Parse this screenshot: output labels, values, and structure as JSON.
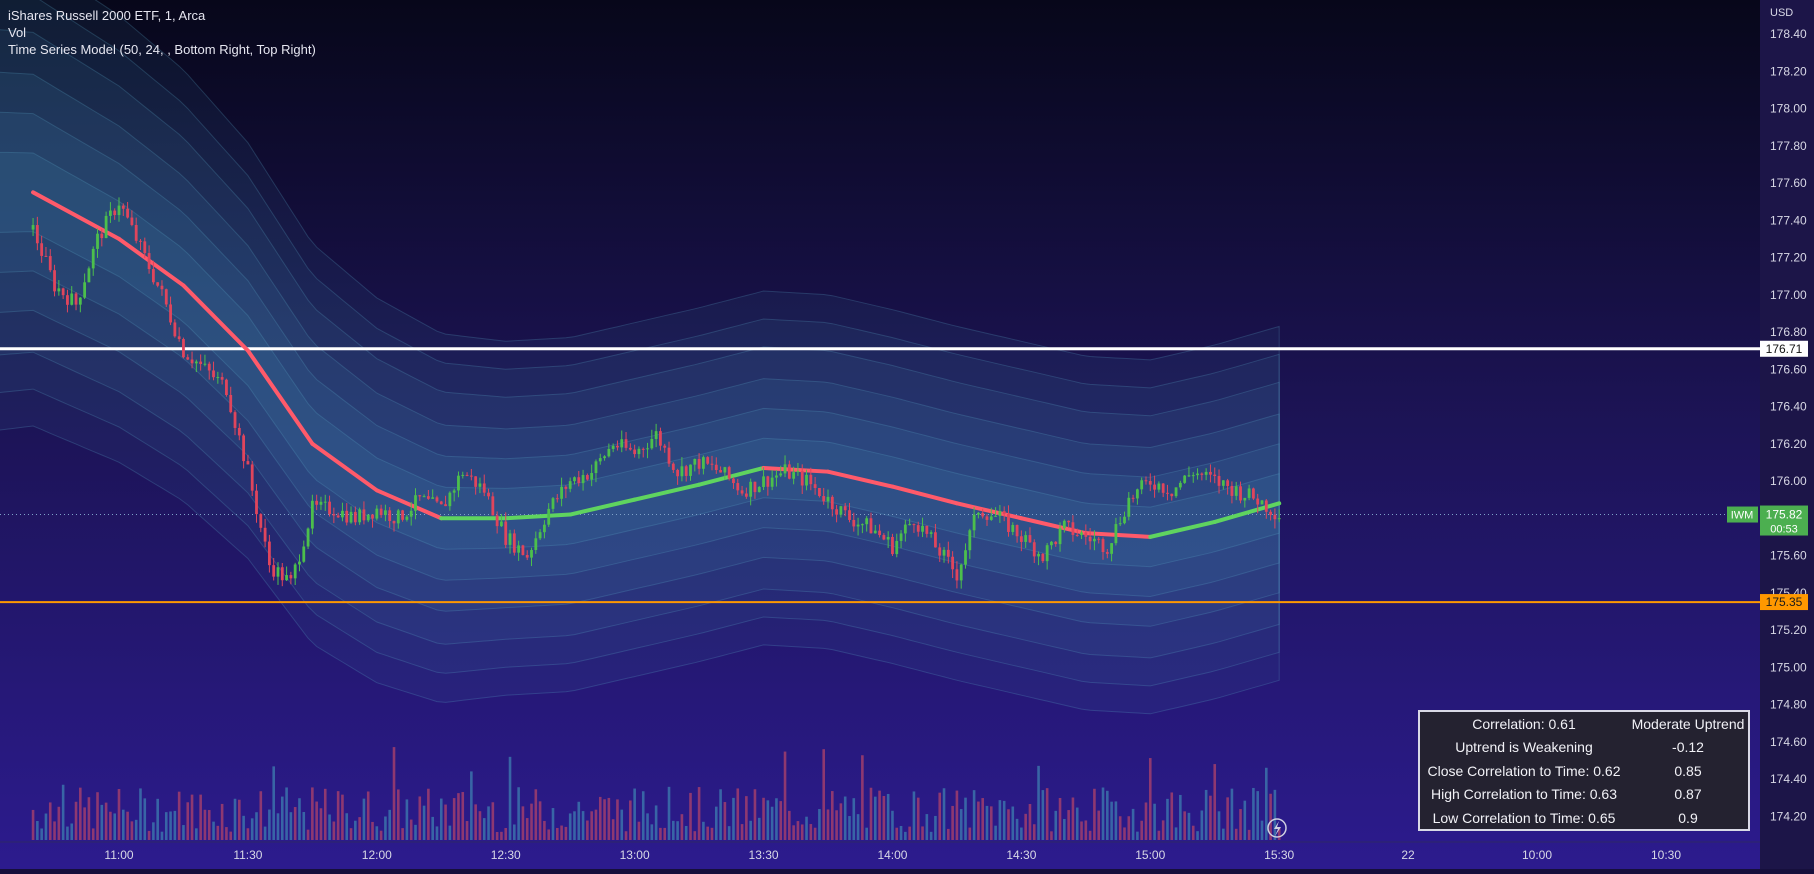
{
  "header": {
    "title": "iShares Russell 2000 ETF, 1, Arca",
    "volume_label": "Vol",
    "indicator_label": "Time Series Model (50, 24, , Bottom Right, Top Right)",
    "currency": "USD"
  },
  "colors": {
    "background_top": "#08081a",
    "background_bottom": "#2a1a8a",
    "up_candle": "#4cbf4c",
    "down_candle": "#e0455c",
    "model_down": "#ff5a6a",
    "model_up": "#5fd45f",
    "band": "#3f7fa8",
    "resistance": "#ffffff",
    "support": "#ff9800",
    "price_tag": "#4caf50"
  },
  "chart_data": {
    "type": "candlestick",
    "title": "iShares Russell 2000 ETF, 1, Arca",
    "ylabel": "USD",
    "ylim": [
      174.08,
      178.5
    ],
    "y_ticks": [
      "178.40",
      "178.20",
      "178.00",
      "177.80",
      "177.60",
      "177.40",
      "177.20",
      "177.00",
      "176.80",
      "176.60",
      "176.40",
      "176.20",
      "176.00",
      "175.60",
      "175.40",
      "175.20",
      "175.00",
      "174.80",
      "174.60",
      "174.40",
      "174.20"
    ],
    "x_ticks": [
      "11:00",
      "11:30",
      "12:00",
      "12:30",
      "13:00",
      "13:30",
      "14:00",
      "14:30",
      "15:00",
      "15:30",
      "22",
      "10:00",
      "10:30"
    ],
    "grid": false,
    "horizontal_lines": [
      {
        "name": "resistance",
        "value": 176.71,
        "label": "176.71"
      },
      {
        "name": "support",
        "value": 175.35,
        "label": "175.35"
      }
    ],
    "last_price": {
      "symbol": "IWM",
      "value": 175.82,
      "label": "175.82",
      "countdown": "00:53"
    },
    "price_path": [
      {
        "t": "10:40",
        "p": 177.35
      },
      {
        "t": "10:45",
        "p": 177.05
      },
      {
        "t": "10:50",
        "p": 176.95
      },
      {
        "t": "10:55",
        "p": 177.3
      },
      {
        "t": "11:00",
        "p": 177.5
      },
      {
        "t": "11:05",
        "p": 177.25
      },
      {
        "t": "11:10",
        "p": 177.0
      },
      {
        "t": "11:15",
        "p": 176.7
      },
      {
        "t": "11:20",
        "p": 176.6
      },
      {
        "t": "11:25",
        "p": 176.5
      },
      {
        "t": "11:30",
        "p": 176.05
      },
      {
        "t": "11:35",
        "p": 175.55
      },
      {
        "t": "11:40",
        "p": 175.45
      },
      {
        "t": "11:45",
        "p": 175.85
      },
      {
        "t": "11:50",
        "p": 175.85
      },
      {
        "t": "11:55",
        "p": 175.8
      },
      {
        "t": "12:00",
        "p": 175.85
      },
      {
        "t": "12:05",
        "p": 175.8
      },
      {
        "t": "12:10",
        "p": 175.9
      },
      {
        "t": "12:15",
        "p": 175.85
      },
      {
        "t": "12:20",
        "p": 176.05
      },
      {
        "t": "12:25",
        "p": 175.95
      },
      {
        "t": "12:30",
        "p": 175.7
      },
      {
        "t": "12:35",
        "p": 175.6
      },
      {
        "t": "12:40",
        "p": 175.85
      },
      {
        "t": "12:45",
        "p": 176.0
      },
      {
        "t": "12:50",
        "p": 176.05
      },
      {
        "t": "12:55",
        "p": 176.2
      },
      {
        "t": "13:00",
        "p": 176.15
      },
      {
        "t": "13:05",
        "p": 176.25
      },
      {
        "t": "13:10",
        "p": 176.05
      },
      {
        "t": "13:15",
        "p": 176.1
      },
      {
        "t": "13:20",
        "p": 176.05
      },
      {
        "t": "13:25",
        "p": 175.95
      },
      {
        "t": "13:30",
        "p": 176.0
      },
      {
        "t": "13:35",
        "p": 176.05
      },
      {
        "t": "13:40",
        "p": 176.0
      },
      {
        "t": "13:45",
        "p": 175.9
      },
      {
        "t": "13:50",
        "p": 175.8
      },
      {
        "t": "13:55",
        "p": 175.75
      },
      {
        "t": "14:00",
        "p": 175.65
      },
      {
        "t": "14:05",
        "p": 175.8
      },
      {
        "t": "14:10",
        "p": 175.65
      },
      {
        "t": "14:15",
        "p": 175.5
      },
      {
        "t": "14:20",
        "p": 175.85
      },
      {
        "t": "14:25",
        "p": 175.8
      },
      {
        "t": "14:30",
        "p": 175.7
      },
      {
        "t": "14:35",
        "p": 175.6
      },
      {
        "t": "14:40",
        "p": 175.75
      },
      {
        "t": "14:45",
        "p": 175.7
      },
      {
        "t": "14:50",
        "p": 175.65
      },
      {
        "t": "14:55",
        "p": 175.9
      },
      {
        "t": "15:00",
        "p": 176.0
      },
      {
        "t": "15:05",
        "p": 175.95
      },
      {
        "t": "15:10",
        "p": 176.05
      },
      {
        "t": "15:15",
        "p": 176.0
      },
      {
        "t": "15:20",
        "p": 175.95
      },
      {
        "t": "15:25",
        "p": 175.9
      },
      {
        "t": "15:30",
        "p": 175.82
      }
    ],
    "model_line": [
      {
        "t": "10:40",
        "p": 177.55
      },
      {
        "t": "11:00",
        "p": 177.3
      },
      {
        "t": "11:15",
        "p": 177.05
      },
      {
        "t": "11:30",
        "p": 176.7
      },
      {
        "t": "11:45",
        "p": 176.2
      },
      {
        "t": "12:00",
        "p": 175.95
      },
      {
        "t": "12:15",
        "p": 175.8
      },
      {
        "t": "12:30",
        "p": 175.8
      },
      {
        "t": "12:45",
        "p": 175.82
      },
      {
        "t": "13:00",
        "p": 175.9
      },
      {
        "t": "13:15",
        "p": 175.98
      },
      {
        "t": "13:30",
        "p": 176.07
      },
      {
        "t": "13:45",
        "p": 176.05
      },
      {
        "t": "14:00",
        "p": 175.97
      },
      {
        "t": "14:15",
        "p": 175.88
      },
      {
        "t": "14:30",
        "p": 175.8
      },
      {
        "t": "14:45",
        "p": 175.72
      },
      {
        "t": "15:00",
        "p": 175.7
      },
      {
        "t": "15:15",
        "p": 175.78
      },
      {
        "t": "15:30",
        "p": 175.88
      }
    ],
    "volume_visible": true
  },
  "stats_table": [
    {
      "label": "Correlation: 0.61",
      "value": "Moderate Uptrend"
    },
    {
      "label": "Uptrend is Weakening",
      "value": "-0.12"
    },
    {
      "label": "Close Correlation to Time: 0.62",
      "value": "0.85"
    },
    {
      "label": "High Correlation to Time: 0.63",
      "value": "0.87"
    },
    {
      "label": "Low Correlation to Time: 0.65",
      "value": "0.9"
    }
  ]
}
